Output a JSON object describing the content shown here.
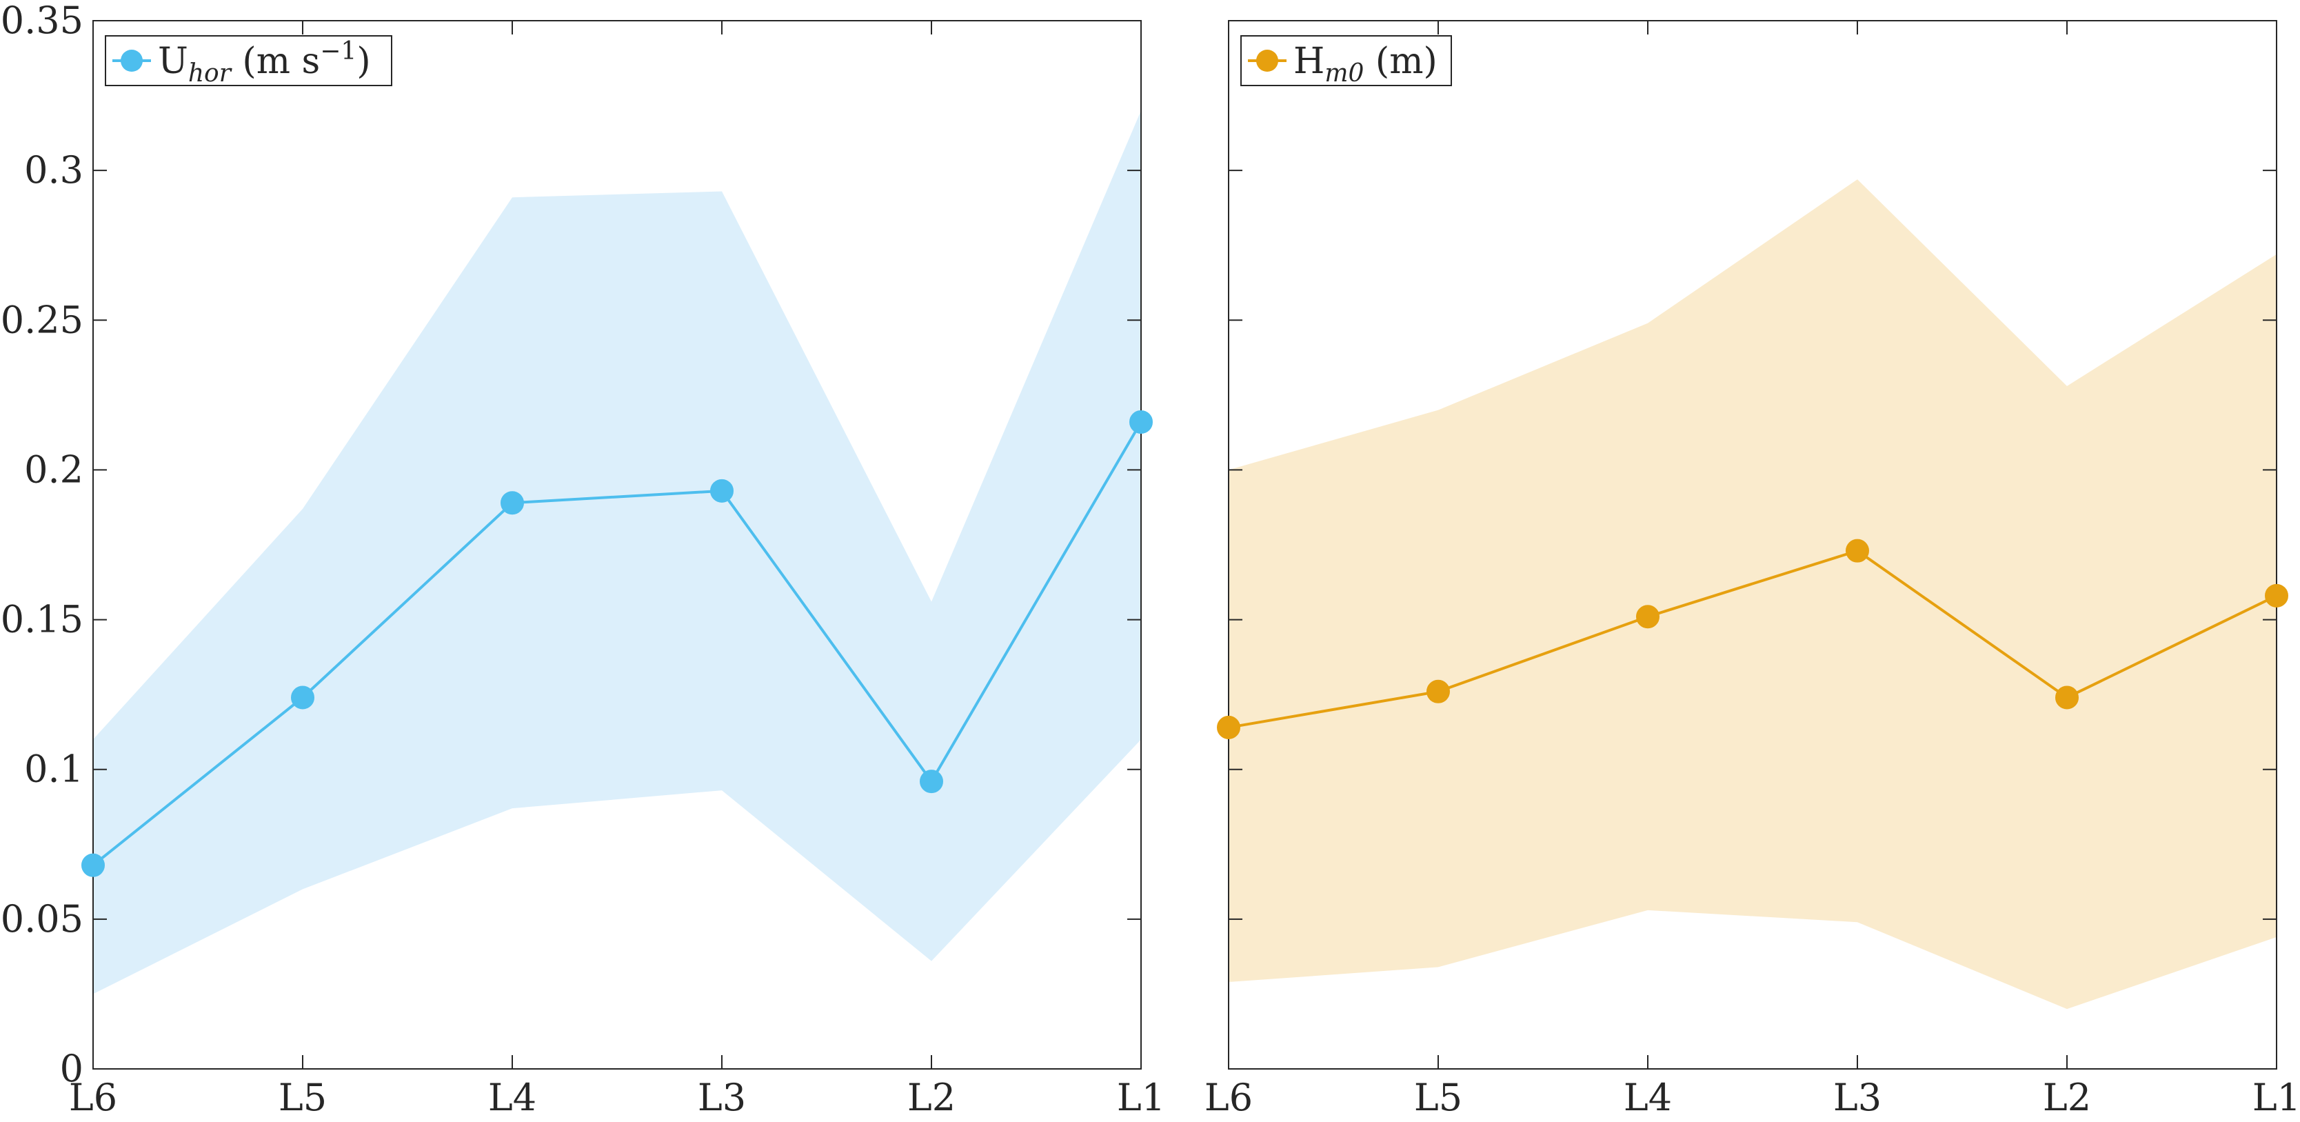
{
  "chart_data": [
    {
      "type": "line",
      "title": "",
      "xlabel": "",
      "ylabel": "",
      "categories": [
        "L6",
        "L5",
        "L4",
        "L3",
        "L2",
        "L1"
      ],
      "ylim": [
        0,
        0.35
      ],
      "yticks": [
        0,
        0.05,
        0.1,
        0.15,
        0.2,
        0.25,
        0.3,
        0.35
      ],
      "ytick_labels": [
        "0",
        "0.05",
        "0.1",
        "0.15",
        "0.2",
        "0.25",
        "0.3",
        "0.35"
      ],
      "grid": false,
      "legend_position": "top-left",
      "series": [
        {
          "name": "U_hor (m s^-1)",
          "legend": {
            "main": "U",
            "sub": "hor",
            "after": " (m s",
            "sup": "−1",
            "end": ")"
          },
          "color": "#4DBEEE",
          "band_color": "#DCEFFB",
          "values": [
            0.068,
            0.124,
            0.189,
            0.193,
            0.096,
            0.216
          ],
          "band_upper": [
            0.11,
            0.187,
            0.291,
            0.293,
            0.156,
            0.32
          ],
          "band_lower": [
            0.025,
            0.06,
            0.087,
            0.093,
            0.036,
            0.11
          ]
        }
      ]
    },
    {
      "type": "line",
      "title": "",
      "xlabel": "",
      "ylabel": "",
      "categories": [
        "L6",
        "L5",
        "L4",
        "L3",
        "L2",
        "L1"
      ],
      "ylim": [
        0,
        0.35
      ],
      "yticks": [
        0,
        0.05,
        0.1,
        0.15,
        0.2,
        0.25,
        0.3,
        0.35
      ],
      "ytick_labels": [],
      "grid": false,
      "legend_position": "top-left",
      "series": [
        {
          "name": "H_m0 (m)",
          "legend": {
            "main": "H",
            "sub": "m0",
            "after": " (m)",
            "sup": "",
            "end": ""
          },
          "color": "#E6A00F",
          "band_color": "#FAEBCD",
          "values": [
            0.114,
            0.126,
            0.151,
            0.173,
            0.124,
            0.158
          ],
          "band_upper": [
            0.2,
            0.22,
            0.249,
            0.297,
            0.228,
            0.272
          ],
          "band_lower": [
            0.029,
            0.034,
            0.053,
            0.049,
            0.02,
            0.044
          ]
        }
      ]
    }
  ]
}
